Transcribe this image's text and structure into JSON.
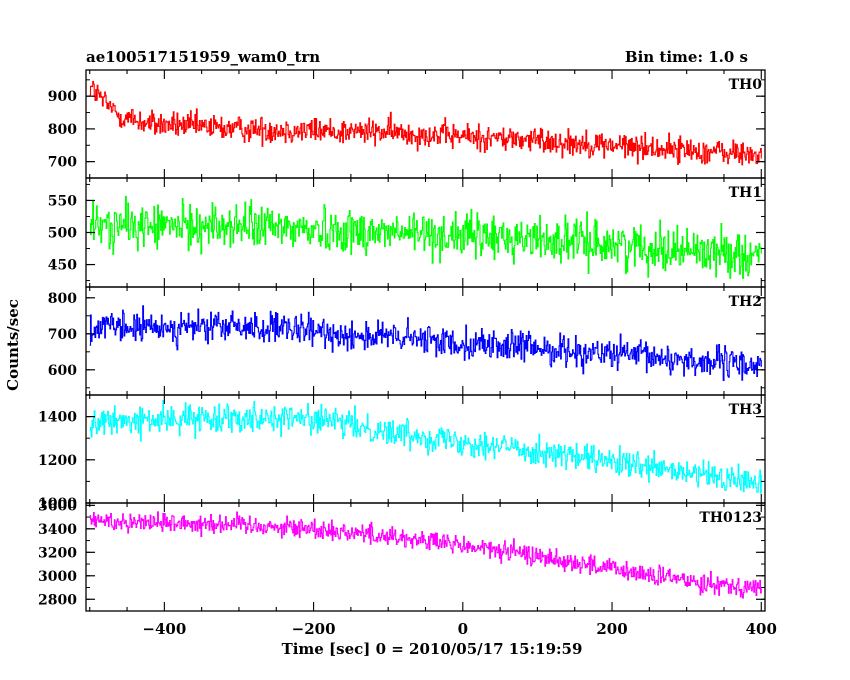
{
  "header": {
    "title": "ae100517151959_wam0_trn",
    "bin_time": "Bin time: 1.0 s"
  },
  "chart_data": {
    "type": "line",
    "xlabel": "Time [sec] 0 = 2010/05/17 15:19:59",
    "ylabel": "Counts/sec",
    "xlim": [
      -505,
      405
    ],
    "x_ticks": [
      -400,
      -200,
      0,
      200,
      400
    ],
    "x_tick_labels": [
      "−400",
      "−200",
      "0",
      "200",
      "400"
    ],
    "x_range": [
      -500,
      400
    ],
    "panels": [
      {
        "name": "TH0",
        "color": "#ff0000",
        "ylim": [
          650,
          980
        ],
        "yticks": [
          700,
          800,
          900
        ],
        "ytick_labels": [
          "700",
          "800",
          "900"
        ],
        "trend": [
          [
            -500,
            930
          ],
          [
            -480,
            880
          ],
          [
            -460,
            840
          ],
          [
            -420,
            815
          ],
          [
            -300,
            800
          ],
          [
            -100,
            790
          ],
          [
            100,
            765
          ],
          [
            400,
            720
          ]
        ],
        "noise": 28
      },
      {
        "name": "TH1",
        "color": "#00ff00",
        "ylim": [
          415,
          585
        ],
        "yticks": [
          450,
          500,
          550
        ],
        "ytick_labels": [
          "450",
          "500",
          "550"
        ],
        "trend": [
          [
            -500,
            510
          ],
          [
            -300,
            510
          ],
          [
            -100,
            500
          ],
          [
            100,
            490
          ],
          [
            400,
            465
          ]
        ],
        "noise": 24
      },
      {
        "name": "TH2",
        "color": "#0000ff",
        "ylim": [
          530,
          830
        ],
        "yticks": [
          600,
          700,
          800
        ],
        "ytick_labels": [
          "600",
          "700",
          "800"
        ],
        "trend": [
          [
            -500,
            715
          ],
          [
            -300,
            720
          ],
          [
            -100,
            690
          ],
          [
            100,
            660
          ],
          [
            400,
            610
          ]
        ],
        "noise": 30
      },
      {
        "name": "TH3",
        "color": "#00ffff",
        "ylim": [
          1000,
          1500
        ],
        "yticks": [
          1000,
          1200,
          1400
        ],
        "ytick_labels": [
          "1000",
          "1200",
          "1400"
        ],
        "trend": [
          [
            -500,
            1370
          ],
          [
            -300,
            1400
          ],
          [
            -200,
            1390
          ],
          [
            -100,
            1330
          ],
          [
            100,
            1240
          ],
          [
            250,
            1160
          ],
          [
            400,
            1090
          ]
        ],
        "noise": 45
      },
      {
        "name": "TH0123",
        "color": "#ff00ff",
        "ylim": [
          2700,
          3620
        ],
        "yticks": [
          2800,
          3000,
          3200,
          3400,
          3600
        ],
        "ytick_labels": [
          "2800",
          "3000",
          "3200",
          "3400",
          "3600"
        ],
        "trend": [
          [
            -500,
            3470
          ],
          [
            -300,
            3440
          ],
          [
            -200,
            3400
          ],
          [
            -100,
            3340
          ],
          [
            100,
            3170
          ],
          [
            250,
            3000
          ],
          [
            400,
            2890
          ]
        ],
        "noise": 60
      }
    ]
  }
}
